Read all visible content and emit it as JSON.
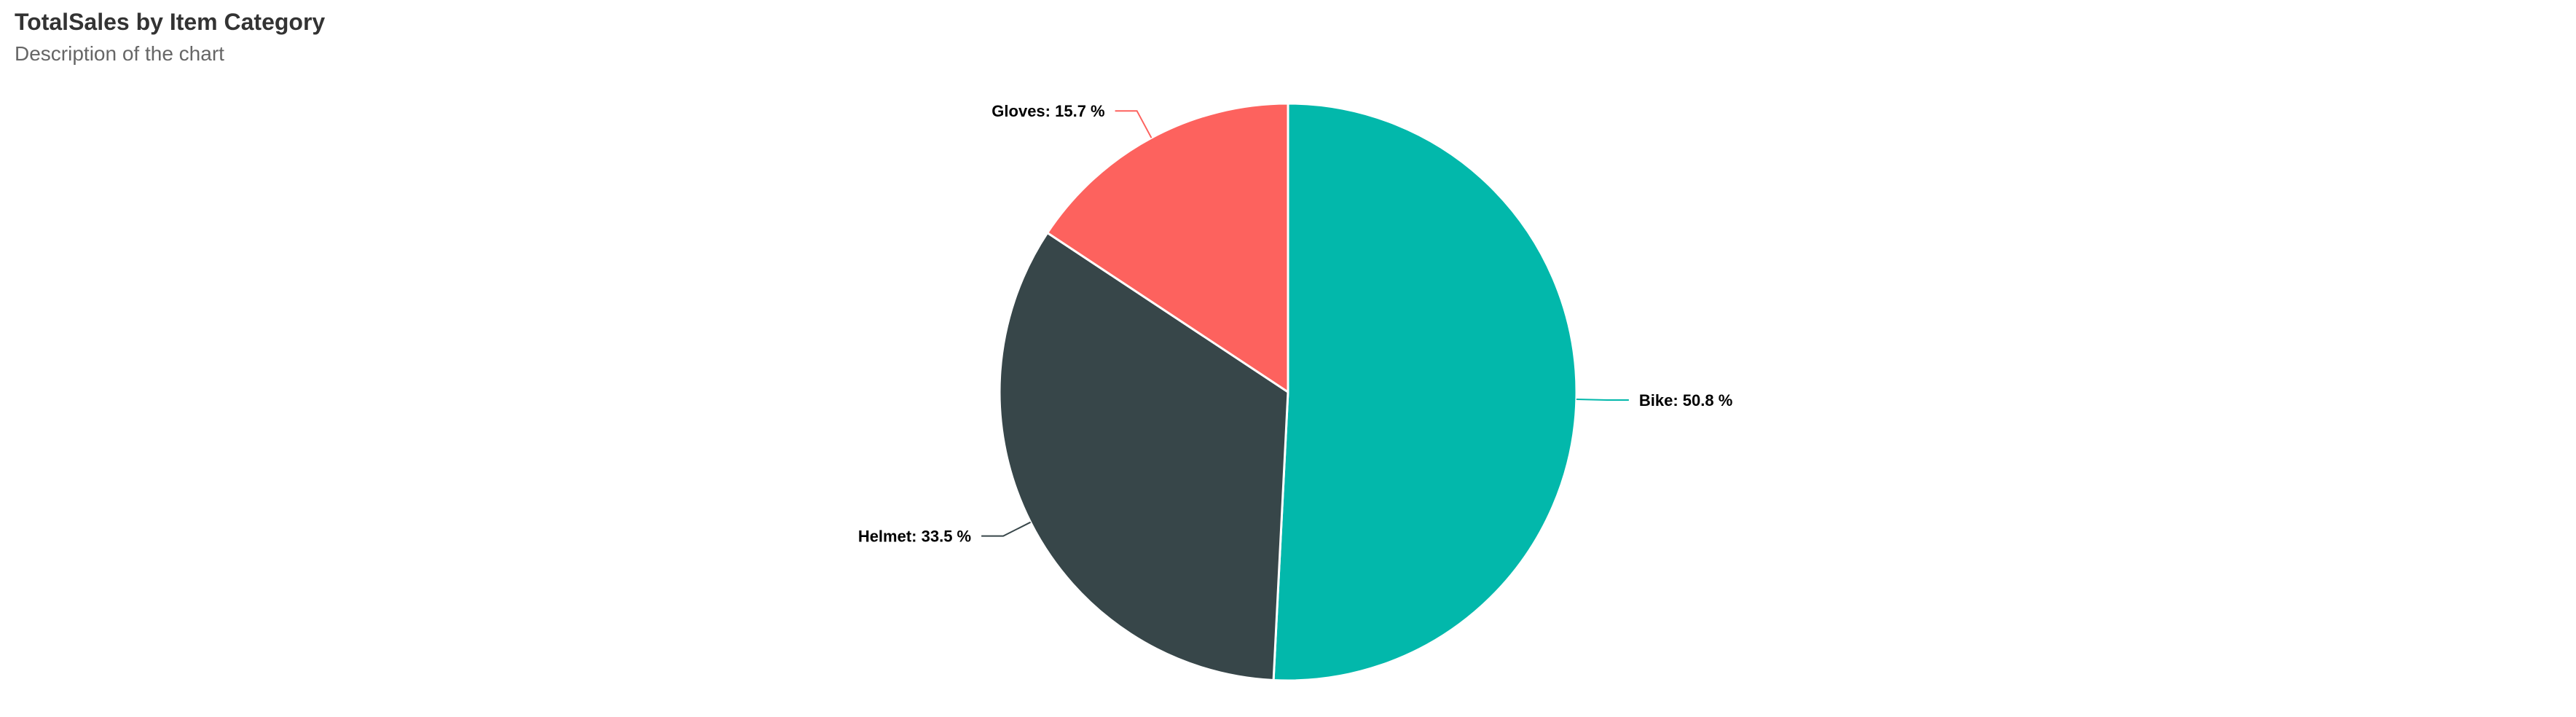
{
  "chart_data": {
    "type": "pie",
    "title": "TotalSales by Item Category",
    "subtitle": "Description of the chart",
    "slices": [
      {
        "label": "Bike: 50.8 %",
        "category": "Bike",
        "value": 50.8,
        "color": "#02B8AB"
      },
      {
        "label": "Helmet: 33.5 %",
        "category": "Helmet",
        "value": 33.5,
        "color": "#374649"
      },
      {
        "label": "Gloves: 15.7 %",
        "category": "Gloves",
        "value": 15.7,
        "color": "#FD625E"
      }
    ],
    "start_angle_deg": 0,
    "direction": "clockwise",
    "legend": "none"
  }
}
